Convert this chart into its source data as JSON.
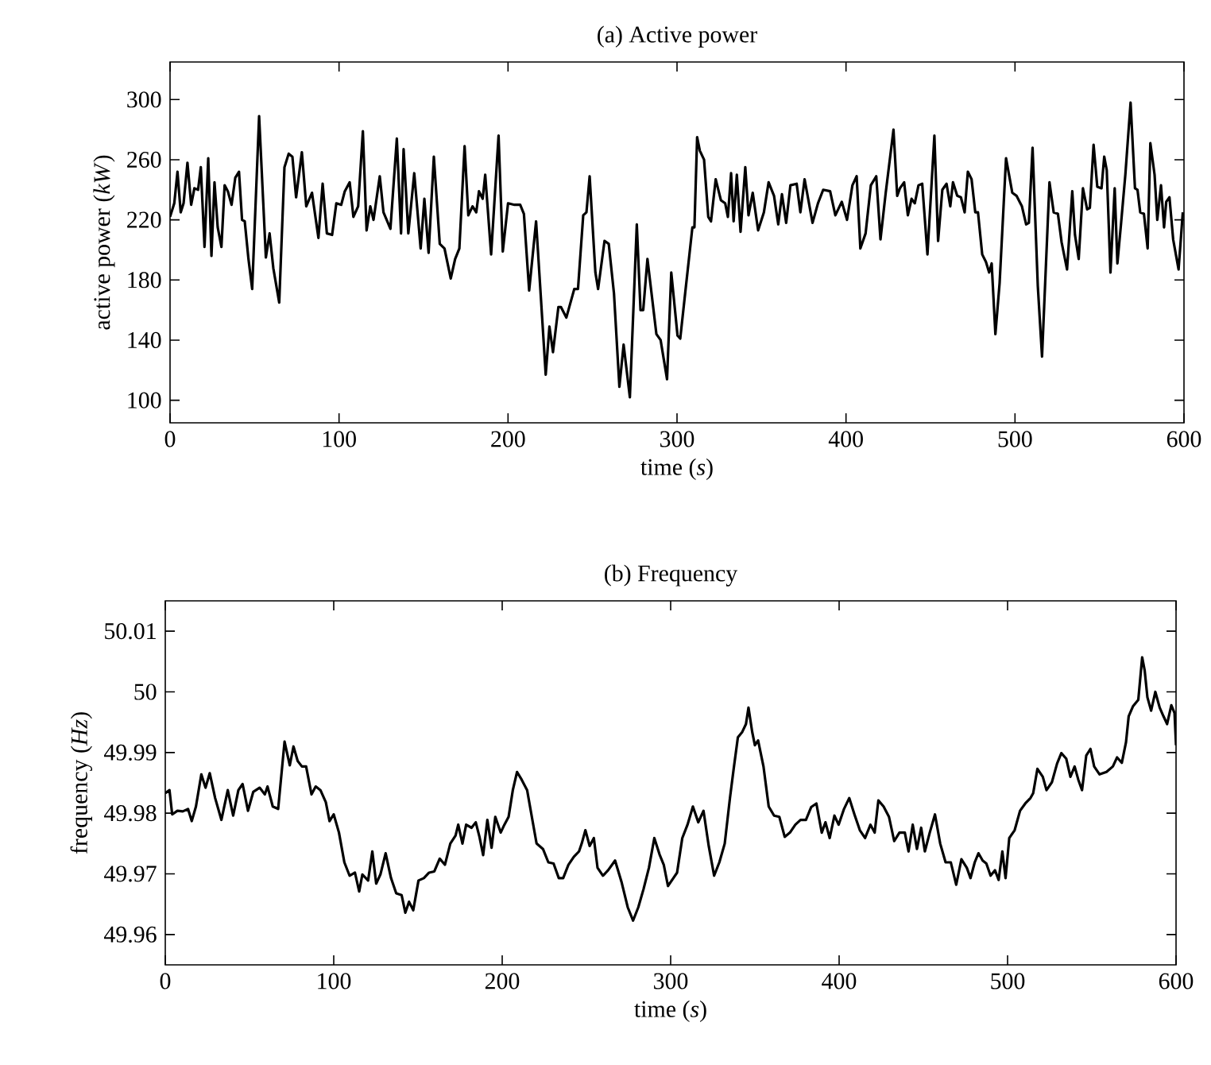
{
  "chart_data": [
    {
      "type": "line",
      "title": "(a)  Active power",
      "xlabel": "time (*s*)",
      "ylabel": "active power (*kW*)",
      "color": "#000000",
      "xlim": [
        0,
        600
      ],
      "ylim": [
        85,
        325
      ],
      "xticks": [
        0,
        100,
        200,
        300,
        400,
        500,
        600
      ],
      "yticks": [
        100,
        140,
        180,
        220,
        260,
        300
      ],
      "x": [
        0,
        2.5,
        4.4,
        6.3,
        8,
        10.3,
        12.5,
        14.4,
        16.6,
        18.2,
        20.4,
        22.6,
        24.5,
        26.3,
        28.2,
        30.4,
        32.3,
        34.2,
        36.4,
        38.6,
        40.8,
        42.6,
        44.2,
        46.4,
        48.6,
        52.7,
        56.7,
        58.9,
        61.1,
        64.6,
        67.7,
        70.2,
        72.4,
        74.6,
        78,
        80.6,
        84,
        87.8,
        90.3,
        92.8,
        95.9,
        98.4,
        101.3,
        103.4,
        106.3,
        108.5,
        111.3,
        114.1,
        116.3,
        118.5,
        120.4,
        124.1,
        126.3,
        130.4,
        134.2,
        136.7,
        138.2,
        141,
        144.5,
        148.3,
        150.5,
        153,
        156.1,
        159.6,
        162.4,
        166.1,
        168.7,
        171.2,
        174.3,
        176.5,
        179,
        181.2,
        182.8,
        185,
        186.5,
        190,
        194.4,
        196.9,
        200,
        203.8,
        207.2,
        209.4,
        212.5,
        216.6,
        219.4,
        222.3,
        224.5,
        226.6,
        229.8,
        231.3,
        234.5,
        239.2,
        241.4,
        244.5,
        246.4,
        248.3,
        251.7,
        253.3,
        257.1,
        259.6,
        262.7,
        265.9,
        268.4,
        272.1,
        276.2,
        278.4,
        280,
        282.5,
        287.8,
        290.3,
        294.1,
        296.6,
        300.3,
        301.9,
        305,
        309.1,
        310.3,
        311.9,
        313.5,
        316,
        318.5,
        320.1,
        322.9,
        326,
        328.5,
        330.1,
        332,
        333.5,
        335.4,
        337.6,
        340.4,
        342.3,
        344.8,
        348,
        351.4,
        354.2,
        357.4,
        359.9,
        362.1,
        364.6,
        367.1,
        370.8,
        373,
        375.5,
        380.2,
        383.4,
        386.5,
        390.6,
        393.7,
        397.5,
        400.6,
        403.8,
        406.3,
        408.5,
        411.6,
        414.7,
        417.9,
        420.4,
        423.5,
        428.1,
        430.3,
        431.9,
        434.4,
        436.6,
        438.8,
        440.7,
        442.9,
        445.1,
        448.2,
        452.3,
        454.5,
        457,
        459.5,
        461.7,
        463.3,
        465.8,
        468,
        470.2,
        472.1,
        474.3,
        476.5,
        478.1,
        480.6,
        482.8,
        484.7,
        486.2,
        488.4,
        490.9,
        494.7,
        498.4,
        500.9,
        504.1,
        506.6,
        508.2,
        510.4,
        513.5,
        516,
        520.4,
        522.9,
        525.4,
        527.6,
        530.8,
        533.9,
        535.5,
        537.7,
        540.2,
        542.7,
        544.3,
        546.5,
        548.7,
        551.2,
        552.8,
        554.3,
        556.5,
        559,
        560.6,
        562.8,
        565.3,
        568.4,
        571,
        572.5,
        574.1,
        576.3,
        578.5,
        580.1,
        582.6,
        584.2,
        586.4,
        588.2,
        589.5,
        591.4,
        593.6,
        596.8,
        599.3
      ],
      "values": [
        222,
        231,
        252,
        225,
        231,
        258,
        230,
        241,
        240,
        255,
        202,
        261,
        196,
        245,
        215,
        202,
        243,
        239,
        230,
        248,
        252,
        220,
        219,
        194,
        174,
        289,
        195,
        211,
        188,
        165,
        255,
        264,
        262,
        235,
        265,
        229,
        238,
        208,
        244,
        211,
        210,
        231,
        230,
        239,
        245,
        222,
        229,
        279,
        213,
        229,
        220,
        249,
        225,
        214,
        274,
        211,
        267,
        211,
        251,
        201,
        234,
        198,
        262,
        204,
        201,
        181,
        194,
        201,
        269,
        223,
        229,
        225,
        239,
        234,
        250,
        197,
        276,
        199,
        231,
        230,
        230,
        224,
        173,
        219,
        169,
        117,
        149,
        132,
        162,
        162,
        155,
        174,
        174,
        223,
        225,
        249,
        185,
        174,
        206,
        204,
        171,
        109,
        137,
        102,
        217,
        160,
        160,
        194,
        144,
        140,
        114,
        185,
        143,
        141,
        173,
        215,
        215,
        275,
        266,
        260,
        222,
        219,
        247,
        233,
        231,
        222,
        251,
        219,
        250,
        212,
        255,
        223,
        238,
        213,
        225,
        245,
        236,
        217,
        237,
        218,
        243,
        244,
        225,
        247,
        218,
        231,
        240,
        239,
        223,
        232,
        220,
        243,
        249,
        201,
        211,
        243,
        249,
        207,
        238,
        280,
        236,
        241,
        245,
        223,
        234,
        231,
        243,
        244,
        197,
        276,
        206,
        240,
        244,
        229,
        245,
        236,
        235,
        225,
        252,
        247,
        225,
        225,
        197,
        192,
        185,
        191,
        144,
        178,
        261,
        238,
        236,
        229,
        217,
        218,
        268,
        176,
        129,
        245,
        225,
        224,
        205,
        187,
        239,
        210,
        194,
        241,
        227,
        228,
        270,
        242,
        241,
        262,
        253,
        185,
        241,
        191,
        218,
        250,
        298,
        241,
        240,
        225,
        224,
        201,
        271,
        250,
        220,
        243,
        215,
        232,
        235,
        207,
        187,
        225
      ]
    },
    {
      "type": "line",
      "title": "(b)  Frequency",
      "xlabel": "time (*s*)",
      "ylabel": "frequency (*Hz*)",
      "color": "#000000",
      "xlim": [
        0,
        600
      ],
      "ylim": [
        49.955,
        50.015
      ],
      "xticks": [
        0,
        100,
        200,
        300,
        400,
        500,
        600
      ],
      "yticks": [
        49.96,
        49.97,
        49.98,
        49.99,
        50,
        50.01
      ],
      "x": [
        0,
        2.5,
        4.1,
        7.2,
        10.4,
        13.5,
        15.7,
        18.2,
        21.4,
        23.9,
        26.4,
        29.6,
        33.3,
        37.1,
        40.3,
        43.4,
        45.9,
        49.1,
        52.2,
        56,
        59.1,
        60.7,
        63.8,
        67,
        70.8,
        73.9,
        76.1,
        78.6,
        81.1,
        83.6,
        86.8,
        89.3,
        92.1,
        95.3,
        97.5,
        100,
        103.1,
        106.3,
        109.4,
        112.6,
        115.1,
        117,
        120.4,
        122.9,
        125.2,
        127.7,
        130.8,
        134,
        137.1,
        140.3,
        142.5,
        144.7,
        147.2,
        150.3,
        153.5,
        156.6,
        159.7,
        162.9,
        166,
        169.2,
        172.3,
        173.9,
        176.4,
        178.6,
        181.8,
        184.3,
        186.5,
        188.7,
        191.2,
        193.7,
        195.9,
        199.1,
        201.3,
        203.8,
        206.3,
        208.8,
        211.6,
        214.8,
        217.9,
        220.4,
        224.2,
        227.4,
        230.5,
        233.6,
        236.2,
        239.3,
        242.5,
        245.6,
        247.2,
        249.4,
        251.9,
        254.4,
        256.6,
        259.8,
        262.9,
        267,
        270.8,
        274.5,
        277.7,
        280.8,
        283.9,
        287.1,
        290.3,
        293.4,
        295.9,
        298.4,
        301.6,
        303.8,
        306.9,
        310,
        313.2,
        316.4,
        319.5,
        322.6,
        325.8,
        328.9,
        332.1,
        335.2,
        337.4,
        339.9,
        342.5,
        344.7,
        346.2,
        348.4,
        350,
        351.9,
        355.1,
        358.2,
        361.4,
        364.5,
        367.7,
        370.8,
        374,
        377.1,
        380.3,
        383.4,
        386.5,
        389.7,
        391.9,
        394.4,
        397.2,
        399.7,
        402.9,
        406,
        409.1,
        412.3,
        415.4,
        418.6,
        421.1,
        423.3,
        426.4,
        429.6,
        432.7,
        435.8,
        439,
        441.2,
        443.7,
        446.2,
        448.7,
        450.9,
        453.8,
        456.9,
        460,
        463.2,
        466.3,
        469.5,
        472.6,
        475.8,
        478,
        480.5,
        482.7,
        485.2,
        487.4,
        489.9,
        492.5,
        494.7,
        496.9,
        498.8,
        501,
        504.2,
        507.4,
        510.5,
        513.6,
        515.2,
        517.7,
        520.9,
        523.1,
        526.3,
        529.4,
        531.9,
        534.8,
        537.3,
        539.8,
        542,
        544.2,
        546.7,
        549.2,
        551.4,
        554.6,
        558.7,
        562.5,
        565,
        567.8,
        570.3,
        571.9,
        574.4,
        577.6,
        579.9,
        581.4,
        583,
        585.2,
        587.7,
        590.3,
        592.5,
        594.7,
        597.2,
        599.1,
        600
      ],
      "values": [
        49.9833,
        49.9838,
        49.9798,
        49.9804,
        49.9803,
        49.9807,
        49.9787,
        49.9811,
        49.9864,
        49.9842,
        49.9866,
        49.9825,
        49.9789,
        49.9838,
        49.9796,
        49.9838,
        49.9848,
        49.9804,
        49.9835,
        49.9842,
        49.9831,
        49.9844,
        49.9811,
        49.9807,
        49.9918,
        49.9879,
        49.991,
        49.9886,
        49.9877,
        49.9877,
        49.9831,
        49.9844,
        49.9838,
        49.9818,
        49.9787,
        49.9798,
        49.9768,
        49.9719,
        49.9697,
        49.9702,
        49.9671,
        49.9699,
        49.9689,
        49.9737,
        49.9684,
        49.9699,
        49.9734,
        49.9693,
        49.9668,
        49.9665,
        49.9636,
        49.9654,
        49.964,
        49.9689,
        49.9693,
        49.9702,
        49.9704,
        49.9725,
        49.9715,
        49.975,
        49.9763,
        49.9781,
        49.975,
        49.9781,
        49.9776,
        49.9785,
        49.9761,
        49.9731,
        49.9789,
        49.9743,
        49.9794,
        49.9768,
        49.9781,
        49.9794,
        49.9838,
        49.9868,
        49.9855,
        49.9838,
        49.9789,
        49.975,
        49.9741,
        49.9719,
        49.9717,
        49.9693,
        49.9693,
        49.9715,
        49.9728,
        49.9737,
        49.975,
        49.9772,
        49.9746,
        49.9759,
        49.971,
        49.9697,
        49.9706,
        49.9722,
        49.9687,
        49.9645,
        49.9623,
        49.9645,
        49.9675,
        49.971,
        49.9759,
        49.9732,
        49.9715,
        49.968,
        49.9693,
        49.9702,
        49.9759,
        49.9781,
        49.9811,
        49.9785,
        49.9804,
        49.9746,
        49.9697,
        49.9719,
        49.975,
        49.9825,
        49.9873,
        49.9925,
        49.9934,
        49.9947,
        49.9974,
        49.9934,
        49.9912,
        49.992,
        49.9877,
        49.9811,
        49.9796,
        49.9794,
        49.9761,
        49.9768,
        49.9781,
        49.9789,
        49.9789,
        49.981,
        49.9816,
        49.9768,
        49.9785,
        49.9759,
        49.9796,
        49.9781,
        49.9807,
        49.9825,
        49.9798,
        49.9772,
        49.9759,
        49.9781,
        49.9768,
        49.9821,
        49.9811,
        49.9794,
        49.9754,
        49.9768,
        49.9768,
        49.9737,
        49.9781,
        49.9741,
        49.9776,
        49.9737,
        49.9768,
        49.9798,
        49.975,
        49.9719,
        49.9719,
        49.9682,
        49.9724,
        49.971,
        49.9693,
        49.9719,
        49.9734,
        49.9722,
        49.9717,
        49.9697,
        49.9706,
        49.969,
        49.9737,
        49.9693,
        49.9759,
        49.9772,
        49.9804,
        49.9816,
        49.9825,
        49.9833,
        49.9873,
        49.986,
        49.9838,
        49.9851,
        49.9882,
        49.9899,
        49.989,
        49.986,
        49.9877,
        49.9855,
        49.9838,
        49.9895,
        49.9906,
        49.9877,
        49.9864,
        49.9868,
        49.9877,
        49.9892,
        49.9883,
        49.9917,
        49.996,
        49.9976,
        49.9987,
        50.0057,
        50.0035,
        49.9991,
        49.9969,
        50,
        49.9974,
        49.996,
        49.9947,
        49.9978,
        49.9965,
        49.9912
      ]
    }
  ]
}
